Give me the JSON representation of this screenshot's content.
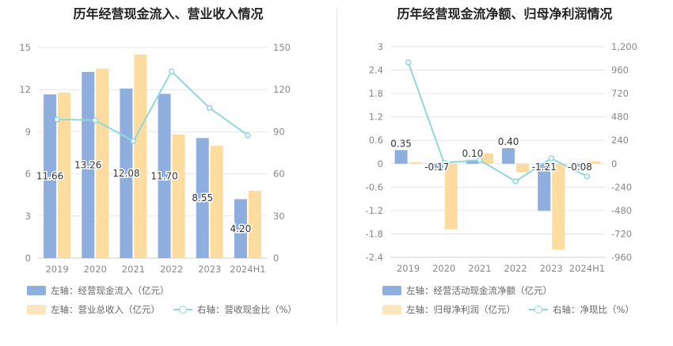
{
  "charts": [
    {
      "title": "历年经营现金流入、营业收入情况",
      "legend": {
        "bar1": "左轴：经营现金流入（亿元）",
        "bar2": "左轴：营业总收入（亿元）",
        "line": "右轴：营收现金比（%）"
      }
    },
    {
      "title": "历年经营现金流净额、归母净利润情况",
      "legend": {
        "bar1": "左轴：经营活动现金流净额（亿元）",
        "bar2": "左轴：归母净利润（亿元）",
        "line": "右轴：净现比（%）"
      }
    }
  ],
  "chart_data": [
    {
      "type": "bar",
      "title": "历年经营现金流入、营业收入情况",
      "categories": [
        "2019",
        "2020",
        "2021",
        "2022",
        "2023",
        "2024H1"
      ],
      "series": [
        {
          "name": "左轴：经营现金流入（亿元）",
          "axis": "left",
          "type": "bar",
          "color": "#8eaedd",
          "values": [
            11.66,
            13.26,
            12.08,
            11.7,
            8.55,
            4.2
          ],
          "labels": [
            "11.66",
            "13.26",
            "12.08",
            "11.70",
            "8.55",
            "4.20"
          ]
        },
        {
          "name": "左轴：营业总收入（亿元）",
          "axis": "left",
          "type": "bar",
          "color": "#fedca0",
          "values": [
            11.8,
            13.5,
            14.5,
            8.8,
            8.0,
            4.8
          ]
        },
        {
          "name": "右轴：营收现金比（%）",
          "axis": "right",
          "type": "line",
          "color": "#90d7dc",
          "values": [
            98.8,
            98.2,
            83.3,
            133.0,
            106.9,
            87.5
          ]
        }
      ],
      "left_axis": {
        "min": 0,
        "max": 15,
        "ticks": [
          "0",
          "3",
          "6",
          "9",
          "12",
          "15"
        ]
      },
      "right_axis": {
        "min": 0,
        "max": 150,
        "ticks": [
          "0",
          "30",
          "60",
          "90",
          "120",
          "150"
        ]
      },
      "grid": true,
      "legend_position": "bottom-left"
    },
    {
      "type": "bar",
      "title": "历年经营现金流净额、归母净利润情况",
      "categories": [
        "2019",
        "2020",
        "2021",
        "2022",
        "2023",
        "2024H1"
      ],
      "series": [
        {
          "name": "左轴：经营活动现金流净额（亿元）",
          "axis": "left",
          "type": "bar",
          "color": "#8eaedd",
          "values": [
            0.35,
            -0.17,
            0.1,
            0.4,
            -1.21,
            -0.08
          ],
          "labels": [
            "0.35",
            "-0.17",
            "0.10",
            "0.40",
            "-1.21",
            "-0.08"
          ]
        },
        {
          "name": "左轴：归母净利润（亿元）",
          "axis": "left",
          "type": "bar",
          "color": "#fedca0",
          "values": [
            0.04,
            -1.68,
            0.27,
            -0.22,
            -2.2,
            0.06
          ]
        },
        {
          "name": "右轴：净现比（%）",
          "axis": "right",
          "type": "line",
          "color": "#90d7dc",
          "values": [
            1040,
            10,
            37,
            -180,
            55,
            -130
          ]
        }
      ],
      "left_axis": {
        "min": -2.4,
        "max": 3,
        "ticks": [
          "-2.4",
          "-1.8",
          "-1.2",
          "-0.6",
          "0",
          "0.6",
          "1.2",
          "1.8",
          "2.4",
          "3"
        ]
      },
      "right_axis": {
        "min": -960,
        "max": 1200,
        "ticks": [
          "-960",
          "-720",
          "-480",
          "-240",
          "0",
          "240",
          "480",
          "720",
          "960",
          "1,200"
        ]
      },
      "grid": true,
      "legend_position": "bottom-left"
    }
  ]
}
